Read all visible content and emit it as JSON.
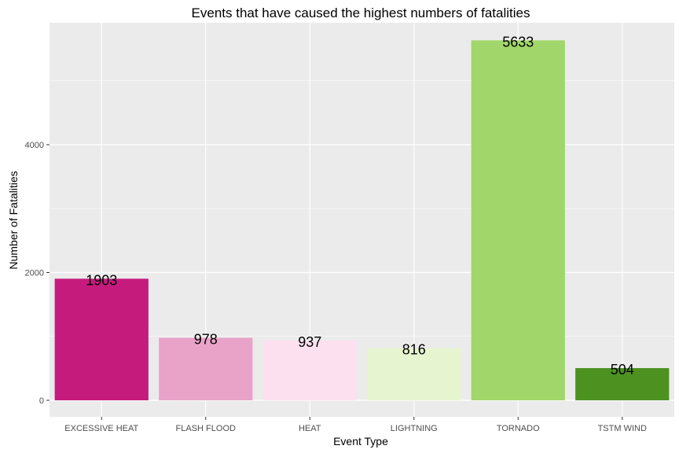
{
  "chart_data": {
    "type": "bar",
    "title": "Events that have caused the highest numbers of fatalities",
    "xlabel": "Event Type",
    "ylabel": "Number of Fatalities",
    "categories": [
      "EXCESSIVE HEAT",
      "FLASH FLOOD",
      "HEAT",
      "LIGHTNING",
      "TORNADO",
      "TSTM WIND"
    ],
    "values": [
      1903,
      978,
      937,
      816,
      5633,
      504
    ],
    "colors": [
      "#c51b7d",
      "#e9a3c9",
      "#fde0ef",
      "#e6f5d0",
      "#a1d76a",
      "#4d9221"
    ],
    "ylim": [
      0,
      5900
    ],
    "yticks": [
      0,
      2000,
      4000
    ],
    "grid": true,
    "legend": "none",
    "background": "#ebebeb",
    "grid_color": "#ffffff"
  }
}
